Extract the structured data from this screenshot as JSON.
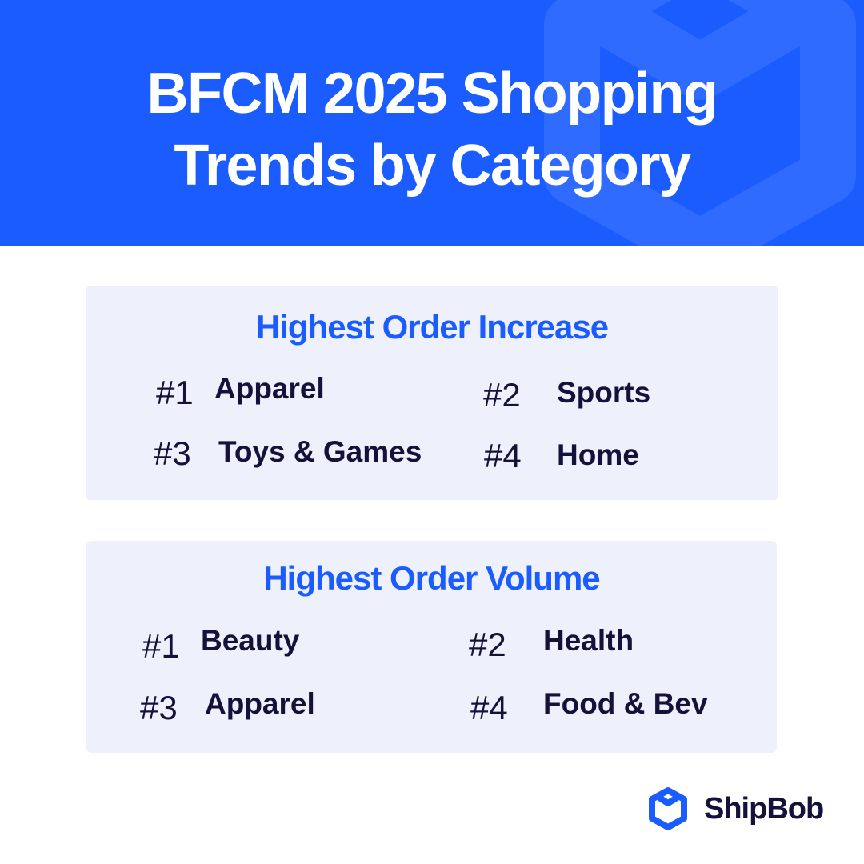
{
  "header": {
    "title_line1": "BFCM 2025 Shopping",
    "title_line2": "Trends by Category"
  },
  "sections": [
    {
      "title": "Highest Order Increase",
      "items": [
        {
          "rank": "#1",
          "label": "Apparel"
        },
        {
          "rank": "#2",
          "label": "Sports"
        },
        {
          "rank": "#3",
          "label": "Toys & Games"
        },
        {
          "rank": "#4",
          "label": "Home"
        }
      ]
    },
    {
      "title": "Highest Order Volume",
      "items": [
        {
          "rank": "#1",
          "label": "Beauty"
        },
        {
          "rank": "#2",
          "label": "Health"
        },
        {
          "rank": "#3",
          "label": "Apparel"
        },
        {
          "rank": "#4",
          "label": "Food & Bev"
        }
      ]
    }
  ],
  "brand": {
    "name": "ShipBob",
    "icon": "box-logo-icon"
  },
  "colors": {
    "accent": "#1b5cff",
    "text": "#14123a",
    "card": "#eef1fc"
  }
}
